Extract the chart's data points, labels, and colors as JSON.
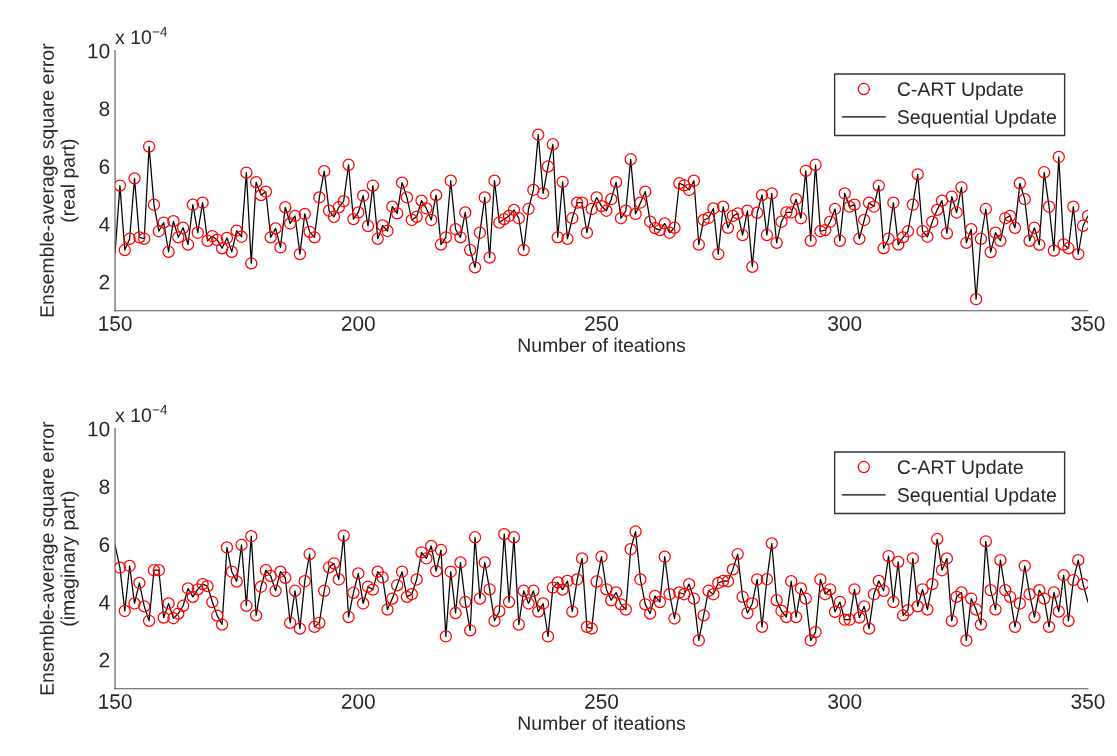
{
  "chart_data": [
    {
      "type": "line",
      "xlabel": "Number of iteations",
      "ylabel": "Ensemble-average square error\n(real part)",
      "annotations": [
        "x 10$^{−4}$"
      ],
      "xlim": [
        150,
        350
      ],
      "ylim": [
        1,
        10
      ],
      "xticks": [
        150,
        200,
        250,
        300,
        350
      ],
      "yticks": [
        2,
        4,
        6,
        8,
        10
      ],
      "grid": false,
      "legend": "top right",
      "x": [
        150,
        151,
        152,
        153,
        154,
        155,
        156,
        157,
        158,
        159,
        160,
        161,
        162,
        163,
        164,
        165,
        166,
        167,
        168,
        169,
        170,
        171,
        172,
        173,
        174,
        175,
        176,
        177,
        178,
        179,
        180,
        181,
        182,
        183,
        184,
        185,
        186,
        187,
        188,
        189,
        190,
        191,
        192,
        193,
        194,
        195,
        196,
        197,
        198,
        199,
        200,
        201,
        202,
        203,
        204,
        205,
        206,
        207,
        208,
        209,
        210,
        211,
        212,
        213,
        214,
        215,
        216,
        217,
        218,
        219,
        220,
        221,
        222,
        223,
        224,
        225,
        226,
        227,
        228,
        229,
        230,
        231,
        232,
        233,
        234,
        235,
        236,
        237,
        238,
        239,
        240,
        241,
        242,
        243,
        244,
        245,
        246,
        247,
        248,
        249,
        250,
        251,
        252,
        253,
        254,
        255,
        256,
        257,
        258,
        259,
        260,
        261,
        262,
        263,
        264,
        265,
        266,
        267,
        268,
        269,
        270,
        271,
        272,
        273,
        274,
        275,
        276,
        277,
        278,
        279,
        280,
        281,
        282,
        283,
        284,
        285,
        286,
        287,
        288,
        289,
        290,
        291,
        292,
        293,
        294,
        295,
        296,
        297,
        298,
        299,
        300,
        301,
        302,
        303,
        304,
        305,
        306,
        307,
        308,
        309,
        310,
        311,
        312,
        313,
        314,
        315,
        316,
        317,
        318,
        319,
        320,
        321,
        322,
        323,
        324,
        325,
        326,
        327,
        328,
        329,
        330,
        331,
        332,
        333,
        334,
        335,
        336,
        337,
        338,
        339,
        340,
        341,
        342,
        343,
        344,
        345,
        346,
        347,
        348,
        349,
        350
      ],
      "series": [
        {
          "name": "C-ART Update",
          "type": "scatter",
          "marker": "circle",
          "color": "#ff0000",
          "values": [
            null,
            5.33,
            3.1,
            3.49,
            5.58,
            3.54,
            3.49,
            6.68,
            4.67,
            3.75,
            4.05,
            3.04,
            4.1,
            3.54,
            3.87,
            3.29,
            4.67,
            3.7,
            4.74,
            3.42,
            3.58,
            3.45,
            3.16,
            3.52,
            3.04,
            3.77,
            3.56,
            5.78,
            2.64,
            5.45,
            5.0,
            5.12,
            3.54,
            3.85,
            3.19,
            4.58,
            4.02,
            4.28,
            2.96,
            4.35,
            3.73,
            3.54,
            4.92,
            5.83,
            4.46,
            4.25,
            4.58,
            4.79,
            6.05,
            4.17,
            4.4,
            4.98,
            3.93,
            5.33,
            3.49,
            3.95,
            3.76,
            4.6,
            4.37,
            5.43,
            4.92,
            4.14,
            4.25,
            4.81,
            4.54,
            4.14,
            5.0,
            3.29,
            3.54,
            5.5,
            3.82,
            3.54,
            4.4,
            3.1,
            2.5,
            3.7,
            4.92,
            2.84,
            5.5,
            4.05,
            4.17,
            4.28,
            4.49,
            4.2,
            3.1,
            4.52,
            5.18,
            7.09,
            5.06,
            5.99,
            6.76,
            3.54,
            5.46,
            3.49,
            4.2,
            4.74,
            4.74,
            3.7,
            4.52,
            4.92,
            4.62,
            4.46,
            4.86,
            5.45,
            4.2,
            4.46,
            6.24,
            4.35,
            4.74,
            5.12,
            4.08,
            3.86,
            3.79,
            4.02,
            3.7,
            3.87,
            5.41,
            5.34,
            5.18,
            5.5,
            3.29,
            4.14,
            4.21,
            4.54,
            2.96,
            4.6,
            3.87,
            4.28,
            4.37,
            3.62,
            4.46,
            2.52,
            4.39,
            5.0,
            3.62,
            5.06,
            3.35,
            4.08,
            4.4,
            4.4,
            4.86,
            4.2,
            5.84,
            3.42,
            6.05,
            3.75,
            3.79,
            4.08,
            4.52,
            3.42,
            5.06,
            4.6,
            4.67,
            3.49,
            4.14,
            4.74,
            4.6,
            5.33,
            3.16,
            3.49,
            4.74,
            3.29,
            3.54,
            3.75,
            4.67,
            5.72,
            3.75,
            3.56,
            4.08,
            4.49,
            4.81,
            3.68,
            4.95,
            4.4,
            5.27,
            3.35,
            3.82,
            1.4,
            3.49,
            4.52,
            3.03,
            3.7,
            3.42,
            4.2,
            4.28,
            3.87,
            5.41,
            4.86,
            3.42,
            3.87,
            3.28,
            5.79,
            4.6,
            3.08,
            6.32,
            3.29,
            3.16,
            4.6,
            2.96,
            3.94,
            4.28
          ]
        },
        {
          "name": "Sequential Update",
          "type": "line",
          "marker": "none",
          "line_style": "solid",
          "color": "#000000",
          "values": [
            3.0,
            5.33,
            3.1,
            3.49,
            5.58,
            3.54,
            3.49,
            6.68,
            4.67,
            3.75,
            4.05,
            3.04,
            4.1,
            3.54,
            3.87,
            3.29,
            4.67,
            3.7,
            4.74,
            3.42,
            3.58,
            3.45,
            3.16,
            3.52,
            3.04,
            3.77,
            3.56,
            5.78,
            2.64,
            5.45,
            5.0,
            5.12,
            3.54,
            3.85,
            3.19,
            4.58,
            4.02,
            4.28,
            2.96,
            4.35,
            3.73,
            3.54,
            4.92,
            5.83,
            4.46,
            4.25,
            4.58,
            4.79,
            6.05,
            4.17,
            4.4,
            4.98,
            3.93,
            5.33,
            3.49,
            3.95,
            3.76,
            4.6,
            4.37,
            5.43,
            4.92,
            4.14,
            4.25,
            4.81,
            4.54,
            4.14,
            5.0,
            3.29,
            3.54,
            5.5,
            3.82,
            3.54,
            4.4,
            3.1,
            2.5,
            3.7,
            4.92,
            2.84,
            5.5,
            4.05,
            4.17,
            4.28,
            4.49,
            4.2,
            3.1,
            4.52,
            5.18,
            7.09,
            5.06,
            5.99,
            6.76,
            3.54,
            5.46,
            3.49,
            4.2,
            4.74,
            4.74,
            3.7,
            4.52,
            4.92,
            4.62,
            4.46,
            4.86,
            5.45,
            4.2,
            4.46,
            6.24,
            4.35,
            4.74,
            5.12,
            4.08,
            3.86,
            3.79,
            4.02,
            3.7,
            3.87,
            5.41,
            5.34,
            5.18,
            5.5,
            3.29,
            4.14,
            4.21,
            4.54,
            2.96,
            4.6,
            3.87,
            4.28,
            4.37,
            3.62,
            4.46,
            2.52,
            4.39,
            5.0,
            3.62,
            5.06,
            3.35,
            4.08,
            4.4,
            4.4,
            4.86,
            4.2,
            5.84,
            3.42,
            6.05,
            3.75,
            3.79,
            4.08,
            4.52,
            3.42,
            5.06,
            4.6,
            4.67,
            3.49,
            4.14,
            4.74,
            4.6,
            5.33,
            3.16,
            3.49,
            4.74,
            3.29,
            3.54,
            3.75,
            4.67,
            5.72,
            3.75,
            3.56,
            4.08,
            4.49,
            4.81,
            3.68,
            4.95,
            4.4,
            5.27,
            3.35,
            3.82,
            1.4,
            3.49,
            4.52,
            3.03,
            3.7,
            3.42,
            4.2,
            4.28,
            3.87,
            5.41,
            4.86,
            3.42,
            3.87,
            3.28,
            5.79,
            4.6,
            3.08,
            6.32,
            3.29,
            3.16,
            4.6,
            2.96,
            3.94,
            4.28
          ]
        }
      ]
    },
    {
      "type": "line",
      "xlabel": "Number of iteations",
      "ylabel": "Ensemble-average square error\n(imaginary part)",
      "annotations": [
        "x 10$^{−4}$"
      ],
      "xlim": [
        150,
        350
      ],
      "ylim": [
        1,
        10
      ],
      "xticks": [
        150,
        200,
        250,
        300,
        350
      ],
      "yticks": [
        2,
        4,
        6,
        8,
        10
      ],
      "grid": false,
      "legend": "top right",
      "x": [
        150,
        151,
        152,
        153,
        154,
        155,
        156,
        157,
        158,
        159,
        160,
        161,
        162,
        163,
        164,
        165,
        166,
        167,
        168,
        169,
        170,
        171,
        172,
        173,
        174,
        175,
        176,
        177,
        178,
        179,
        180,
        181,
        182,
        183,
        184,
        185,
        186,
        187,
        188,
        189,
        190,
        191,
        192,
        193,
        194,
        195,
        196,
        197,
        198,
        199,
        200,
        201,
        202,
        203,
        204,
        205,
        206,
        207,
        208,
        209,
        210,
        211,
        212,
        213,
        214,
        215,
        216,
        217,
        218,
        219,
        220,
        221,
        222,
        223,
        224,
        225,
        226,
        227,
        228,
        229,
        230,
        231,
        232,
        233,
        234,
        235,
        236,
        237,
        238,
        239,
        240,
        241,
        242,
        243,
        244,
        245,
        246,
        247,
        248,
        249,
        250,
        251,
        252,
        253,
        254,
        255,
        256,
        257,
        258,
        259,
        260,
        261,
        262,
        263,
        264,
        265,
        266,
        267,
        268,
        269,
        270,
        271,
        272,
        273,
        274,
        275,
        276,
        277,
        278,
        279,
        280,
        281,
        282,
        283,
        284,
        285,
        286,
        287,
        288,
        289,
        290,
        291,
        292,
        293,
        294,
        295,
        296,
        297,
        298,
        299,
        300,
        301,
        302,
        303,
        304,
        305,
        306,
        307,
        308,
        309,
        310,
        311,
        312,
        313,
        314,
        315,
        316,
        317,
        318,
        319,
        320,
        321,
        322,
        323,
        324,
        325,
        326,
        327,
        328,
        329,
        330,
        331,
        332,
        333,
        334,
        335,
        336,
        337,
        338,
        339,
        340,
        341,
        342,
        343,
        344,
        345,
        346,
        347,
        348,
        349,
        350
      ],
      "series": [
        {
          "name": "C-ART Update",
          "type": "scatter",
          "marker": "circle",
          "color": "#ff0000",
          "values": [
            null,
            5.19,
            3.69,
            5.25,
            3.95,
            4.66,
            3.85,
            3.35,
            5.1,
            5.1,
            3.46,
            3.95,
            3.44,
            3.6,
            3.87,
            4.47,
            4.18,
            4.44,
            4.62,
            4.55,
            4.0,
            3.53,
            3.22,
            5.89,
            5.05,
            4.71,
            5.98,
            3.87,
            6.28,
            3.54,
            4.53,
            5.1,
            4.9,
            4.39,
            5.05,
            4.84,
            3.28,
            4.39,
            3.08,
            4.72,
            5.66,
            3.14,
            3.28,
            4.39,
            5.2,
            5.34,
            4.78,
            6.3,
            3.48,
            4.32,
            4.99,
            3.95,
            4.53,
            4.43,
            5.05,
            4.85,
            3.74,
            4.12,
            4.58,
            5.05,
            4.18,
            4.27,
            4.78,
            5.72,
            5.51,
            5.94,
            5.07,
            5.8,
            2.81,
            5.05,
            3.62,
            5.37,
            4.0,
            3.02,
            6.24,
            4.12,
            5.37,
            4.44,
            3.35,
            3.68,
            6.35,
            4.0,
            6.24,
            3.22,
            4.39,
            3.95,
            4.39,
            3.67,
            3.95,
            2.81,
            4.5,
            4.68,
            4.43,
            4.73,
            3.67,
            4.78,
            5.51,
            3.14,
            3.08,
            4.71,
            5.57,
            4.44,
            4.06,
            4.33,
            3.92,
            3.74,
            5.83,
            6.44,
            4.78,
            3.92,
            3.6,
            4.21,
            4.0,
            5.57,
            4.27,
            3.43,
            4.33,
            4.27,
            4.62,
            4.12,
            2.67,
            3.54,
            4.39,
            4.27,
            4.66,
            4.73,
            4.72,
            5.13,
            5.66,
            4.18,
            3.62,
            3.95,
            4.78,
            3.14,
            4.79,
            6.03,
            4.06,
            3.69,
            3.48,
            4.72,
            3.48,
            4.47,
            4.12,
            2.67,
            2.96,
            4.78,
            4.27,
            4.44,
            3.66,
            4.0,
            3.39,
            3.39,
            4.44,
            3.46,
            3.85,
            3.08,
            4.27,
            4.73,
            4.39,
            5.59,
            4.0,
            5.39,
            3.54,
            3.72,
            5.51,
            3.85,
            4.44,
            3.74,
            4.62,
            6.18,
            5.1,
            5.51,
            3.35,
            4.18,
            4.33,
            2.67,
            4.12,
            3.74,
            3.22,
            6.1,
            4.41,
            3.74,
            5.45,
            4.41,
            4.18,
            3.14,
            3.95,
            5.25,
            4.27,
            3.48,
            4.41,
            4.12,
            3.14,
            4.33,
            3.67,
            4.93,
            3.35,
            4.76,
            5.45,
            4.62,
            null
          ]
        },
        {
          "name": "Sequential Update",
          "type": "line",
          "marker": "none",
          "line_style": "solid",
          "color": "#000000",
          "values": [
            5.97,
            5.19,
            3.69,
            5.25,
            3.95,
            4.66,
            3.85,
            3.35,
            5.1,
            5.1,
            3.46,
            3.95,
            3.44,
            3.6,
            3.87,
            4.47,
            4.18,
            4.44,
            4.62,
            4.55,
            4.0,
            3.53,
            3.22,
            5.89,
            5.05,
            4.71,
            5.98,
            3.87,
            6.28,
            3.54,
            4.53,
            5.1,
            4.9,
            4.39,
            5.05,
            4.84,
            3.28,
            4.39,
            3.08,
            4.72,
            5.66,
            3.14,
            3.28,
            4.39,
            5.2,
            5.34,
            4.78,
            6.3,
            3.48,
            4.32,
            4.99,
            3.95,
            4.53,
            4.43,
            5.05,
            4.85,
            3.74,
            4.12,
            4.58,
            5.05,
            4.18,
            4.27,
            4.78,
            5.72,
            5.51,
            5.94,
            5.07,
            5.8,
            2.81,
            5.05,
            3.62,
            5.37,
            4.0,
            3.02,
            6.24,
            4.12,
            5.37,
            4.44,
            3.35,
            3.68,
            6.35,
            4.0,
            6.24,
            3.22,
            4.39,
            3.95,
            4.39,
            3.67,
            3.95,
            2.81,
            4.5,
            4.68,
            4.43,
            4.73,
            3.67,
            4.78,
            5.51,
            3.14,
            3.08,
            4.71,
            5.57,
            4.44,
            4.06,
            4.33,
            3.92,
            3.74,
            5.83,
            6.44,
            4.78,
            3.92,
            3.6,
            4.21,
            4.0,
            5.57,
            4.27,
            3.43,
            4.33,
            4.27,
            4.62,
            4.12,
            2.67,
            3.54,
            4.39,
            4.27,
            4.66,
            4.73,
            4.72,
            5.13,
            5.66,
            4.18,
            3.62,
            3.95,
            4.78,
            3.14,
            4.79,
            6.03,
            4.06,
            3.69,
            3.48,
            4.72,
            3.48,
            4.47,
            4.12,
            2.67,
            2.96,
            4.78,
            4.27,
            4.44,
            3.66,
            4.0,
            3.39,
            3.39,
            4.44,
            3.46,
            3.85,
            3.08,
            4.27,
            4.73,
            4.39,
            5.59,
            4.0,
            5.39,
            3.54,
            3.72,
            5.51,
            3.85,
            4.44,
            3.74,
            4.62,
            6.18,
            5.1,
            5.51,
            3.35,
            4.18,
            4.33,
            2.67,
            4.12,
            3.74,
            3.22,
            6.1,
            4.41,
            3.74,
            5.45,
            4.41,
            4.18,
            3.14,
            3.95,
            5.25,
            4.27,
            3.48,
            4.41,
            4.12,
            3.14,
            4.33,
            3.67,
            4.93,
            3.35,
            4.76,
            5.45,
            4.62,
            4.0
          ]
        }
      ]
    }
  ]
}
